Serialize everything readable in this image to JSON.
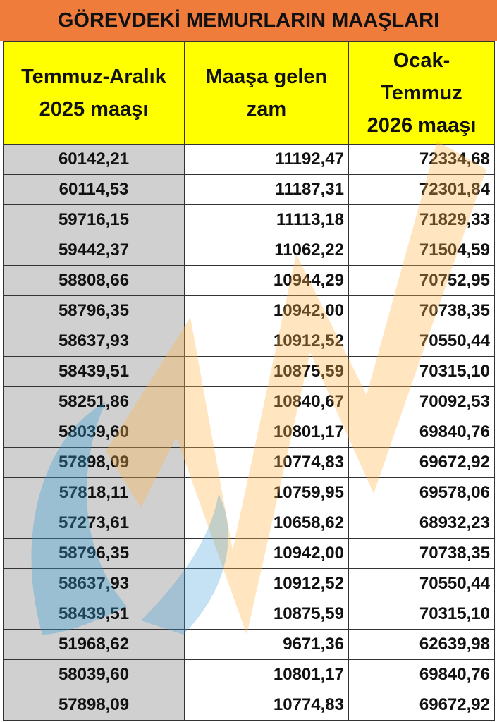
{
  "title": "GÖREVDEKİ MEMURLARIN MAAŞLARI",
  "table": {
    "headers": [
      "Temmuz-Aralık 2025 maaşı",
      "Maaşa gelen zam",
      "Ocak-Temmuz 2026 maaşı"
    ],
    "rows": [
      [
        "60142,21",
        "11192,47",
        "72334,68"
      ],
      [
        "60114,53",
        "11187,31",
        "72301,84"
      ],
      [
        "59716,15",
        "11113,18",
        "71829,33"
      ],
      [
        "59442,37",
        "11062,22",
        "71504,59"
      ],
      [
        "58808,66",
        "10944,29",
        "70752,95"
      ],
      [
        "58796,35",
        "10942,00",
        "70738,35"
      ],
      [
        "58637,93",
        "10912,52",
        "70550,44"
      ],
      [
        "58439,51",
        "10875,59",
        "70315,10"
      ],
      [
        "58251,86",
        "10840,67",
        "70092,53"
      ],
      [
        "58039,60",
        "10801,17",
        "69840,76"
      ],
      [
        "57898,09",
        "10774,83",
        "69672,92"
      ],
      [
        "57818,11",
        "10759,95",
        "69578,06"
      ],
      [
        "57273,61",
        "10658,62",
        "68932,23"
      ],
      [
        "58796,35",
        "10942,00",
        "70738,35"
      ],
      [
        "58637,93",
        "10912,52",
        "70550,44"
      ],
      [
        "58439,51",
        "10875,59",
        "70315,10"
      ],
      [
        "51968,62",
        "9671,36",
        "62639,98"
      ],
      [
        "58039,60",
        "10801,17",
        "69840,76"
      ],
      [
        "57898,09",
        "10774,83",
        "69672,92"
      ]
    ]
  }
}
